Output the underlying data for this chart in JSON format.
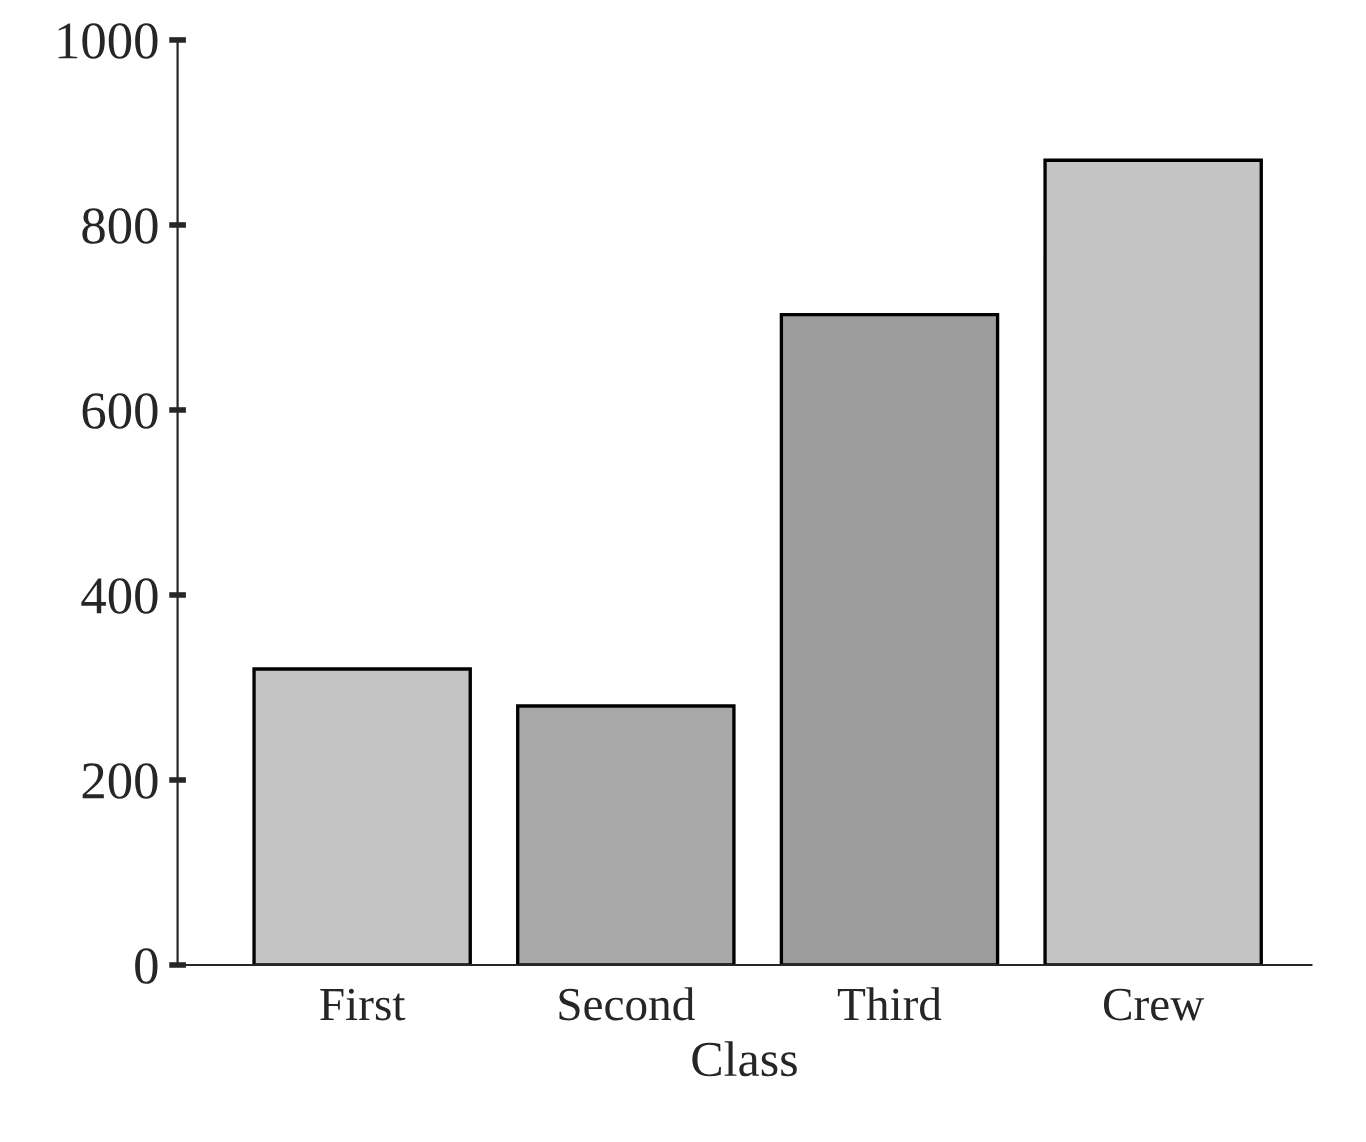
{
  "chart_data": {
    "type": "bar",
    "xlabel": "Class",
    "categories": [
      "First",
      "Second",
      "Third",
      "Crew"
    ],
    "values": [
      320,
      280,
      703,
      870
    ],
    "colors": [
      "#c4c4c4",
      "#a8a8a8",
      "#9c9c9c",
      "#c4c4c4"
    ],
    "ylim": [
      0,
      1000
    ],
    "yticks": [
      0,
      200,
      400,
      600,
      800,
      1000
    ],
    "grid": false
  }
}
